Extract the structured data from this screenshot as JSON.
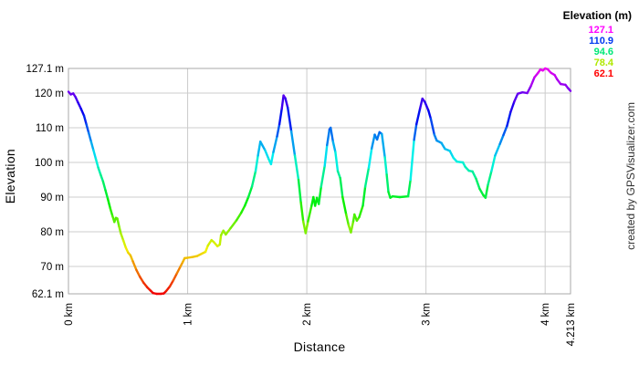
{
  "page": {
    "watermark": "created by GPSVisualizer.com"
  },
  "chart_data": {
    "type": "line",
    "title": "",
    "xlabel": "Distance",
    "ylabel": "Elevation",
    "xlim": [
      0,
      4.213
    ],
    "ylim": [
      62.1,
      127.1
    ],
    "x_ticks": [
      {
        "value": 0,
        "label": "0 km"
      },
      {
        "value": 1,
        "label": "1 km"
      },
      {
        "value": 2,
        "label": "2 km"
      },
      {
        "value": 3,
        "label": "3 km"
      },
      {
        "value": 4,
        "label": "4 km"
      },
      {
        "value": 4.213,
        "label": "4.213 km"
      }
    ],
    "y_ticks": [
      {
        "value": 127.1,
        "label": "127.1 m"
      },
      {
        "value": 120,
        "label": "120 m"
      },
      {
        "value": 110,
        "label": "110 m"
      },
      {
        "value": 100,
        "label": "100 m"
      },
      {
        "value": 90,
        "label": "90 m"
      },
      {
        "value": 80,
        "label": "80 m"
      },
      {
        "value": 70,
        "label": "70 m"
      },
      {
        "value": 62.1,
        "label": "62.1 m"
      }
    ],
    "grid": {
      "h_lines": [
        120,
        110,
        100,
        90,
        80,
        70
      ],
      "v_lines": [
        1,
        2,
        3,
        4
      ],
      "color": "#cccccc",
      "frame_color": "#aaaaaa"
    },
    "legend": {
      "title": "Elevation (m)",
      "position": "top-right",
      "entries": [
        {
          "value": "127.1",
          "color": "#ff00ff"
        },
        {
          "value": "110.9",
          "color": "#0038f0"
        },
        {
          "value": "94.6",
          "color": "#00e878"
        },
        {
          "value": "78.4",
          "color": "#b0e800"
        },
        {
          "value": "62.1",
          "color": "#ff0000"
        }
      ]
    },
    "color_scale": {
      "min": 62.1,
      "max": 127.1,
      "hue_min": 0,
      "hue_max": 300,
      "saturation": 100,
      "lightness": 47
    },
    "series": [
      {
        "name": "elevation-profile",
        "points": [
          [
            0.0,
            120.4
          ],
          [
            0.02,
            119.6
          ],
          [
            0.04,
            119.9
          ],
          [
            0.06,
            118.8
          ],
          [
            0.08,
            117.3
          ],
          [
            0.105,
            115.5
          ],
          [
            0.13,
            113.5
          ],
          [
            0.15,
            111.0
          ],
          [
            0.17,
            108.5
          ],
          [
            0.19,
            106.0
          ],
          [
            0.21,
            103.5
          ],
          [
            0.23,
            101.0
          ],
          [
            0.25,
            98.5
          ],
          [
            0.27,
            96.5
          ],
          [
            0.29,
            94.5
          ],
          [
            0.31,
            92.0
          ],
          [
            0.33,
            89.5
          ],
          [
            0.35,
            86.8
          ],
          [
            0.37,
            84.5
          ],
          [
            0.385,
            82.8
          ],
          [
            0.398,
            84.0
          ],
          [
            0.41,
            83.8
          ],
          [
            0.425,
            81.5
          ],
          [
            0.44,
            79.5
          ],
          [
            0.46,
            77.5
          ],
          [
            0.48,
            75.5
          ],
          [
            0.5,
            74.0
          ],
          [
            0.52,
            73.2
          ],
          [
            0.54,
            71.5
          ],
          [
            0.57,
            69.0
          ],
          [
            0.6,
            67.0
          ],
          [
            0.63,
            65.3
          ],
          [
            0.66,
            64.0
          ],
          [
            0.69,
            63.0
          ],
          [
            0.71,
            62.3
          ],
          [
            0.74,
            62.1
          ],
          [
            0.775,
            62.1
          ],
          [
            0.8,
            62.2
          ],
          [
            0.82,
            62.9
          ],
          [
            0.85,
            64.2
          ],
          [
            0.88,
            66.0
          ],
          [
            0.91,
            68.0
          ],
          [
            0.94,
            70.0
          ],
          [
            0.96,
            71.3
          ],
          [
            0.975,
            72.4
          ],
          [
            1.0,
            72.5
          ],
          [
            1.04,
            72.7
          ],
          [
            1.08,
            73.0
          ],
          [
            1.12,
            73.7
          ],
          [
            1.15,
            74.2
          ],
          [
            1.17,
            76.0
          ],
          [
            1.2,
            77.6
          ],
          [
            1.22,
            77.0
          ],
          [
            1.25,
            75.8
          ],
          [
            1.27,
            76.3
          ],
          [
            1.28,
            79.0
          ],
          [
            1.3,
            80.3
          ],
          [
            1.32,
            79.2
          ],
          [
            1.36,
            81.0
          ],
          [
            1.41,
            83.3
          ],
          [
            1.45,
            85.5
          ],
          [
            1.48,
            87.5
          ],
          [
            1.51,
            90.0
          ],
          [
            1.54,
            93.0
          ],
          [
            1.57,
            97.5
          ],
          [
            1.59,
            102.0
          ],
          [
            1.61,
            106.0
          ],
          [
            1.65,
            103.5
          ],
          [
            1.68,
            101.0
          ],
          [
            1.7,
            99.5
          ],
          [
            1.72,
            103.0
          ],
          [
            1.75,
            107.5
          ],
          [
            1.77,
            111.0
          ],
          [
            1.79,
            115.5
          ],
          [
            1.805,
            119.3
          ],
          [
            1.82,
            118.5
          ],
          [
            1.84,
            115.8
          ],
          [
            1.87,
            109.0
          ],
          [
            1.9,
            102.0
          ],
          [
            1.93,
            95.0
          ],
          [
            1.95,
            88.5
          ],
          [
            1.97,
            83.0
          ],
          [
            1.99,
            79.6
          ],
          [
            2.01,
            83.0
          ],
          [
            2.04,
            87.5
          ],
          [
            2.055,
            90.0
          ],
          [
            2.07,
            87.5
          ],
          [
            2.085,
            89.8
          ],
          [
            2.1,
            88.0
          ],
          [
            2.12,
            93.0
          ],
          [
            2.15,
            99.0
          ],
          [
            2.17,
            105.0
          ],
          [
            2.19,
            109.5
          ],
          [
            2.2,
            110.0
          ],
          [
            2.22,
            106.0
          ],
          [
            2.24,
            103.0
          ],
          [
            2.26,
            97.5
          ],
          [
            2.28,
            95.5
          ],
          [
            2.3,
            90.0
          ],
          [
            2.33,
            85.0
          ],
          [
            2.35,
            82.0
          ],
          [
            2.37,
            79.8
          ],
          [
            2.39,
            83.0
          ],
          [
            2.4,
            85.0
          ],
          [
            2.42,
            83.2
          ],
          [
            2.44,
            84.2
          ],
          [
            2.47,
            87.5
          ],
          [
            2.49,
            93.0
          ],
          [
            2.52,
            98.5
          ],
          [
            2.545,
            104.0
          ],
          [
            2.57,
            108.0
          ],
          [
            2.59,
            106.6
          ],
          [
            2.61,
            108.7
          ],
          [
            2.63,
            108.2
          ],
          [
            2.655,
            101.5
          ],
          [
            2.67,
            96.5
          ],
          [
            2.685,
            91.5
          ],
          [
            2.7,
            89.8
          ],
          [
            2.72,
            90.2
          ],
          [
            2.78,
            90.0
          ],
          [
            2.85,
            90.2
          ],
          [
            2.87,
            95.0
          ],
          [
            2.9,
            106.5
          ],
          [
            2.92,
            111.0
          ],
          [
            2.95,
            115.5
          ],
          [
            2.97,
            118.4
          ],
          [
            2.99,
            117.5
          ],
          [
            3.02,
            115.0
          ],
          [
            3.04,
            112.6
          ],
          [
            3.07,
            108.0
          ],
          [
            3.09,
            106.3
          ],
          [
            3.13,
            105.6
          ],
          [
            3.16,
            103.9
          ],
          [
            3.2,
            103.3
          ],
          [
            3.23,
            101.3
          ],
          [
            3.26,
            100.2
          ],
          [
            3.31,
            100.0
          ],
          [
            3.33,
            98.7
          ],
          [
            3.36,
            97.6
          ],
          [
            3.39,
            97.4
          ],
          [
            3.42,
            95.3
          ],
          [
            3.45,
            92.4
          ],
          [
            3.48,
            90.6
          ],
          [
            3.5,
            89.8
          ],
          [
            3.52,
            93.5
          ],
          [
            3.55,
            97.5
          ],
          [
            3.58,
            102.0
          ],
          [
            3.62,
            105.3
          ],
          [
            3.65,
            107.9
          ],
          [
            3.68,
            110.5
          ],
          [
            3.71,
            114.5
          ],
          [
            3.74,
            117.5
          ],
          [
            3.77,
            119.8
          ],
          [
            3.81,
            120.2
          ],
          [
            3.85,
            120.0
          ],
          [
            3.88,
            122.0
          ],
          [
            3.91,
            124.5
          ],
          [
            3.94,
            125.8
          ],
          [
            3.96,
            126.8
          ],
          [
            3.98,
            126.5
          ],
          [
            4.0,
            127.1
          ],
          [
            4.02,
            126.9
          ],
          [
            4.05,
            125.8
          ],
          [
            4.08,
            125.2
          ],
          [
            4.1,
            124.0
          ],
          [
            4.13,
            122.6
          ],
          [
            4.17,
            122.4
          ],
          [
            4.19,
            121.5
          ],
          [
            4.213,
            120.6
          ]
        ]
      }
    ]
  }
}
